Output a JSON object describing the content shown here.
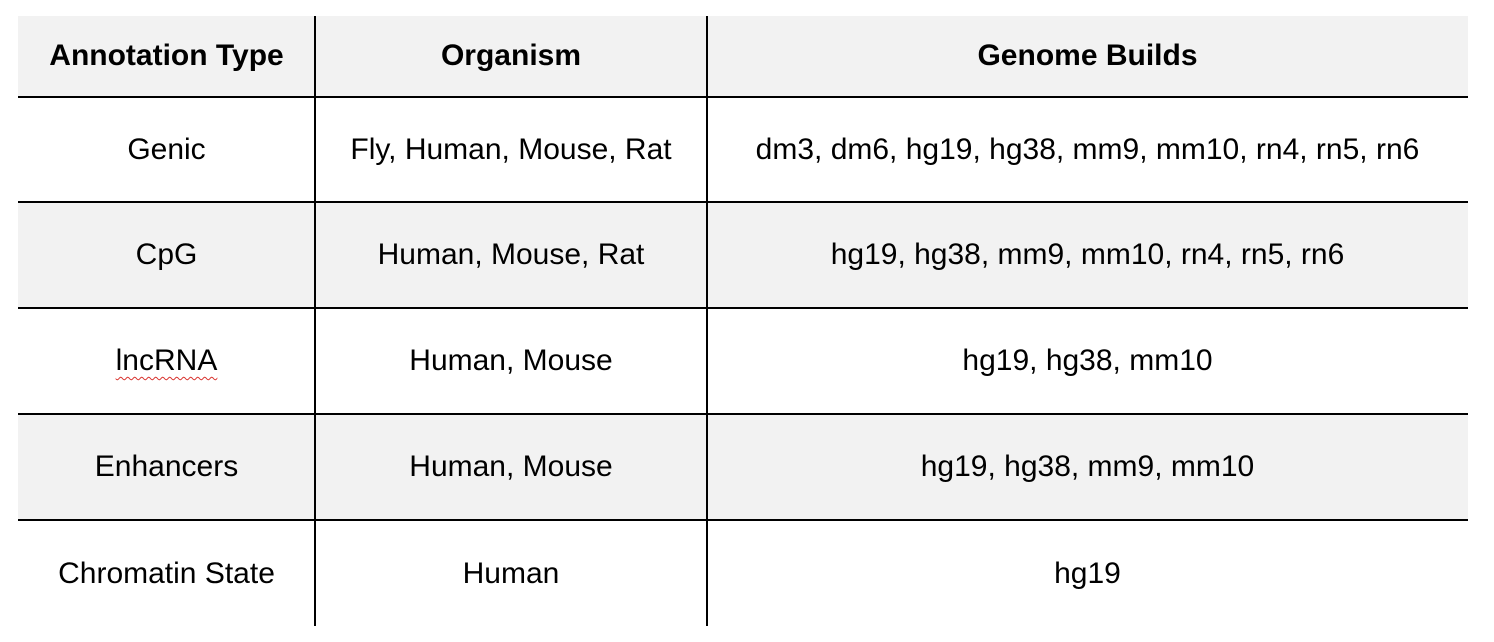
{
  "table": {
    "headers": [
      "Annotation Type",
      "Organism",
      "Genome Builds"
    ],
    "rows": [
      [
        "Genic",
        "Fly, Human, Mouse, Rat",
        "dm3, dm6, hg19, hg38, mm9, mm10, rn4, rn5, rn6"
      ],
      [
        "CpG",
        "Human, Mouse, Rat",
        "hg19, hg38, mm9, mm10, rn4, rn5, rn6"
      ],
      [
        "lncRNA",
        "Human, Mouse",
        "hg19, hg38, mm10"
      ],
      [
        "Enhancers",
        "Human, Mouse",
        "hg19, hg38, mm9, mm10"
      ],
      [
        "Chromatin State",
        "Human",
        "hg19"
      ]
    ]
  },
  "colors": {
    "shaded_row": "#f2f2f2",
    "rule": "#000000",
    "spellcheck_underline": "#d8312c"
  }
}
